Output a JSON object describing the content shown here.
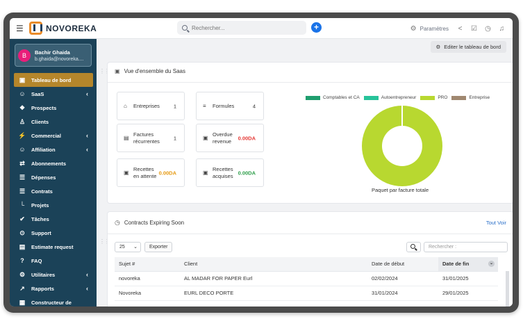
{
  "app": {
    "name": "NOVOREKA"
  },
  "search": {
    "placeholder": "Rechercher..."
  },
  "topbar": {
    "settings_label": "Paramètres"
  },
  "user": {
    "initial": "B",
    "name": "Bachir Ghaida",
    "email": "b.ghaida@novoreka...."
  },
  "sidebar": {
    "items": [
      {
        "label": "Tableau de bord",
        "icon": "dashboard-icon",
        "active": true,
        "chevron": false
      },
      {
        "label": "SaaS",
        "icon": "users-icon",
        "chevron": true
      },
      {
        "label": "Prospects",
        "icon": "network-icon",
        "chevron": false
      },
      {
        "label": "Clients",
        "icon": "user-icon",
        "chevron": false
      },
      {
        "label": "Commercial",
        "icon": "bolt-icon",
        "chevron": true
      },
      {
        "label": "Affiliation",
        "icon": "users-icon",
        "chevron": true
      },
      {
        "label": "Abonnements",
        "icon": "sync-icon",
        "chevron": false
      },
      {
        "label": "Dépenses",
        "icon": "document-icon",
        "chevron": false
      },
      {
        "label": "Contrats",
        "icon": "document-icon",
        "chevron": false
      },
      {
        "label": "Projets",
        "icon": "chart-icon",
        "chevron": false
      },
      {
        "label": "Tâches",
        "icon": "check-circle-icon",
        "chevron": false
      },
      {
        "label": "Support",
        "icon": "lifebuoy-icon",
        "chevron": false
      },
      {
        "label": "Estimate request",
        "icon": "file-icon",
        "chevron": false
      },
      {
        "label": "FAQ",
        "icon": "question-icon",
        "chevron": false
      },
      {
        "label": "Utilitaires",
        "icon": "gear-icon",
        "chevron": true
      },
      {
        "label": "Rapports",
        "icon": "line-chart-icon",
        "chevron": true
      },
      {
        "label": "Constructeur de",
        "icon": "builder-icon",
        "chevron": false
      }
    ]
  },
  "main": {
    "edit_button": "Editer le tableau de bord",
    "overview": {
      "title": "Vue d'ensemble du Saas",
      "stats": [
        {
          "label": "Entreprises",
          "value": "1",
          "tone": "plain",
          "icon": "bank-icon"
        },
        {
          "label": "Formules",
          "value": "4",
          "tone": "plain",
          "icon": "list-icon"
        },
        {
          "label": "Factures récurrentes",
          "value": "1",
          "tone": "plain",
          "icon": "file-icon"
        },
        {
          "label": "Overdue revenue",
          "value": "0.00DA",
          "tone": "red",
          "icon": "money-icon"
        },
        {
          "label": "Recettes en attente",
          "value": "0.00DA",
          "tone": "orange",
          "icon": "money-icon"
        },
        {
          "label": "Recettes acquises",
          "value": "0.00DA",
          "tone": "green",
          "icon": "money-icon"
        }
      ],
      "chart_caption": "Paquet par facture totale"
    },
    "contracts": {
      "title": "Contracts Expiring Soon",
      "view_all": "Tout Voir",
      "page_size": "25",
      "export_label": "Exporter",
      "search_placeholder": "Rechercher :",
      "columns": [
        "Sujet #",
        "Client",
        "Date de début",
        "Date de fin"
      ],
      "rows": [
        [
          "novoreka",
          "AL MADAR FOR PAPER Eurl",
          "02/02/2024",
          "31/01/2025"
        ],
        [
          "Novoreka",
          "EURL DECO PORTE",
          "31/01/2024",
          "29/01/2025"
        ]
      ]
    }
  },
  "chart_data": {
    "type": "pie",
    "title": "",
    "caption": "Paquet par facture totale",
    "series": [
      {
        "name": "Comptables et CA",
        "value": 0,
        "color": "#1f9e6e"
      },
      {
        "name": "Autoentrepreneur",
        "value": 0,
        "color": "#27c39a"
      },
      {
        "name": "PRO",
        "value": 100,
        "color": "#b8d830"
      },
      {
        "name": "Entreprise",
        "value": 0,
        "color": "#a08870"
      }
    ],
    "legend_position": "top",
    "donut": true
  }
}
